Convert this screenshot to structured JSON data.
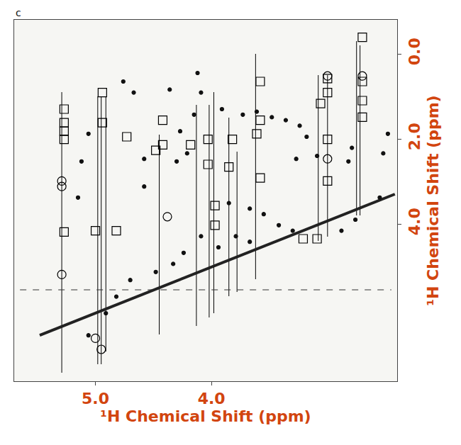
{
  "chart_data": {
    "type": "scatter",
    "x_label": "¹H Chemical Shift (ppm)",
    "y_label": "¹H Chemical Shift (ppm)",
    "annotations": [
      {
        "text": "c"
      }
    ],
    "xlim": [
      5.7,
      2.4
    ],
    "ylim": [
      7.7,
      -0.8
    ],
    "xticks": [
      {
        "value": 5,
        "label": "5.0"
      },
      {
        "value": 4,
        "label": "4.0"
      }
    ],
    "yticks": [
      {
        "value": 0,
        "label": "0.0"
      },
      {
        "value": 2,
        "label": "2.0"
      },
      {
        "value": 4,
        "label": "4.0"
      }
    ],
    "grid": false,
    "series": [
      {
        "type": "line",
        "line_style": "solid",
        "color": "#000000",
        "x": [
          5.29,
          5.29,
          null,
          4.98,
          4.98,
          null,
          4.95,
          4.95,
          null,
          4.91,
          4.91,
          null,
          4.45,
          4.45,
          null,
          4.13,
          4.13,
          null,
          4.02,
          4.02,
          null,
          3.98,
          3.98,
          null,
          3.85,
          3.85,
          null,
          3.78,
          3.78,
          null,
          3.62,
          3.62,
          null,
          3.08,
          3.08,
          null,
          3.0,
          3.0,
          null,
          2.75,
          2.75,
          null,
          2.72,
          2.72
        ],
        "y": [
          0.9,
          7.5,
          null,
          1.0,
          7.3,
          null,
          1.0,
          7.3,
          null,
          1.0,
          7.0,
          null,
          1.9,
          6.6,
          null,
          1.2,
          6.4,
          null,
          1.2,
          6.2,
          null,
          0.9,
          6.1,
          null,
          1.5,
          5.7,
          null,
          2.3,
          5.6,
          null,
          0.0,
          5.3,
          null,
          0.5,
          4.4,
          null,
          0.5,
          4.3,
          null,
          -0.3,
          3.8,
          null,
          -0.2,
          3.8
        ]
      },
      {
        "type": "line",
        "line_style": "dash",
        "color": "#333333",
        "x": [
          5.65,
          2.45
        ],
        "y": [
          5.55,
          5.55
        ]
      },
      {
        "type": "line",
        "line_style": "thick",
        "color": "#222222",
        "x": [
          5.48,
          2.42
        ],
        "y": [
          6.62,
          3.3
        ]
      },
      {
        "type": "scatter",
        "marker": "circle",
        "color": "#111111",
        "x": [
          3.61,
          3.48,
          3.36,
          3.24,
          3.18,
          3.27,
          3.09,
          2.82,
          2.79,
          2.52,
          2.48,
          4.27,
          4.21,
          4.15,
          4.3,
          4.58,
          4.67,
          4.36,
          3.91,
          3.73,
          3.85,
          3.67,
          3.55,
          3.42,
          3.3,
          3.79,
          4.09,
          4.24,
          4.48,
          4.7,
          4.82,
          4.91,
          5.06,
          4.33,
          3.94,
          3.67,
          2.76,
          2.88,
          2.55,
          5.12,
          5.15,
          5.06,
          4.76,
          4.12,
          4.58,
          4.09
        ],
        "y": [
          1.36,
          1.49,
          1.56,
          1.69,
          1.95,
          2.47,
          2.4,
          2.53,
          2.21,
          2.34,
          1.88,
          1.82,
          2.34,
          1.43,
          2.53,
          2.47,
          0.91,
          0.84,
          1.3,
          1.43,
          3.51,
          3.64,
          3.77,
          4.03,
          4.16,
          4.29,
          4.29,
          4.68,
          5.13,
          5.32,
          5.71,
          6.1,
          6.62,
          4.94,
          4.55,
          4.42,
          3.9,
          4.16,
          3.38,
          2.53,
          3.38,
          1.88,
          0.65,
          0.45,
          3.12,
          0.91
        ]
      },
      {
        "type": "scatter",
        "marker": "square-open",
        "color": "#000000",
        "x": [
          5.27,
          5.27,
          5.27,
          5.27,
          5.27,
          4.94,
          4.94,
          4.73,
          5.0,
          4.82,
          4.48,
          4.42,
          4.42,
          4.18,
          4.03,
          4.03,
          3.97,
          3.97,
          3.85,
          3.82,
          3.61,
          3.58,
          3.58,
          3.58,
          3.21,
          3.09,
          3.06,
          3.0,
          3.0,
          3.0,
          2.7,
          2.7,
          2.7,
          2.7,
          3.0
        ],
        "y": [
          1.3,
          1.62,
          1.82,
          2.01,
          4.19,
          0.91,
          1.62,
          1.95,
          4.16,
          4.16,
          2.27,
          1.56,
          2.14,
          2.14,
          2.01,
          2.6,
          3.57,
          4.03,
          2.66,
          2.01,
          1.88,
          0.65,
          1.56,
          2.92,
          4.35,
          4.35,
          1.17,
          2.01,
          2.99,
          0.58,
          -0.39,
          0.65,
          1.1,
          1.49,
          0.91
        ]
      },
      {
        "type": "scatter",
        "marker": "circle-open",
        "color": "#000000",
        "x": [
          5.29,
          5.29,
          5.29,
          5.0,
          4.95,
          4.38,
          3.0,
          3.0,
          2.7
        ],
        "y": [
          2.99,
          3.12,
          5.19,
          6.69,
          6.95,
          3.83,
          2.47,
          0.52,
          0.52
        ]
      }
    ]
  }
}
